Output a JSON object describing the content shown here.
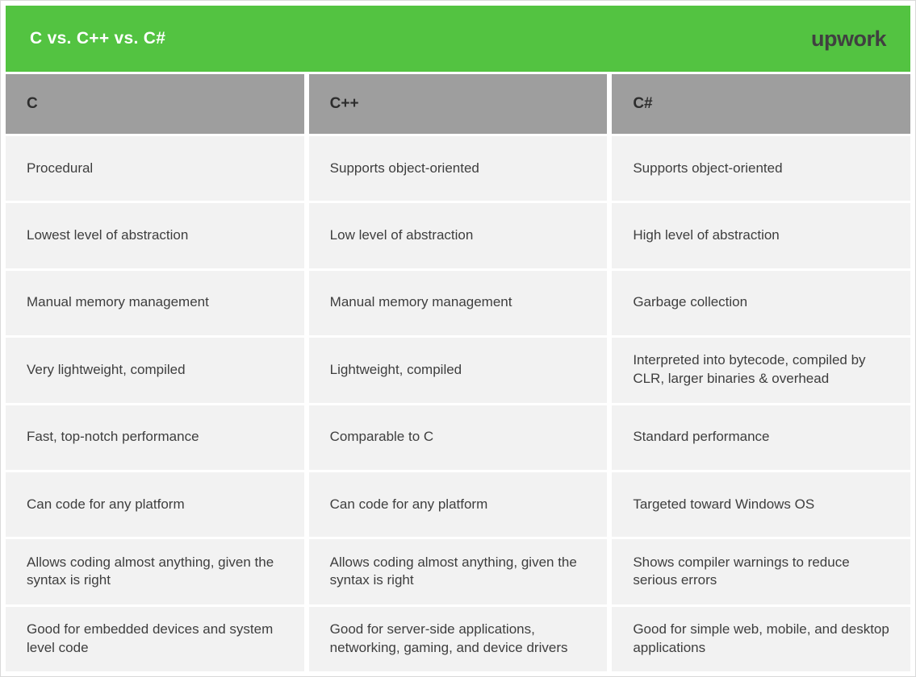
{
  "header": {
    "title": "C vs. C++ vs. C#",
    "logo_text": "upwork"
  },
  "chart_data": {
    "type": "table",
    "title": "C vs. C++ vs. C#",
    "columns": [
      "C",
      "C++",
      "C#"
    ],
    "rows": [
      [
        "Procedural",
        "Supports object-oriented",
        "Supports object-oriented"
      ],
      [
        "Lowest level of abstraction",
        "Low level of abstraction",
        "High level of abstraction"
      ],
      [
        "Manual memory management",
        "Manual memory management",
        "Garbage collection"
      ],
      [
        "Very lightweight, compiled",
        "Lightweight, compiled",
        "Interpreted into bytecode, compiled by CLR, larger binaries & overhead"
      ],
      [
        "Fast, top-notch performance",
        "Comparable to C",
        "Standard performance"
      ],
      [
        "Can code for any platform",
        "Can code for any platform",
        "Targeted toward Windows OS"
      ],
      [
        "Allows coding almost anything, given the syntax is right",
        "Allows coding almost anything, given the syntax is right",
        "Shows compiler warnings to reduce serious errors"
      ],
      [
        "Good for embedded devices and system level code",
        "Good for server-side applications, networking, gaming, and device drivers",
        "Good for simple web, mobile, and desktop applications"
      ]
    ],
    "legend": "none",
    "grid": "white gutters between gray cells"
  },
  "colors": {
    "header_green": "#53c341",
    "column_header_gray": "#9e9e9e",
    "cell_gray": "#f2f2f2",
    "text_dark": "#3e3e3e",
    "heading_dark": "#2d2d2d",
    "logo_dark": "#404040",
    "page_border": "#d9d9d9"
  }
}
